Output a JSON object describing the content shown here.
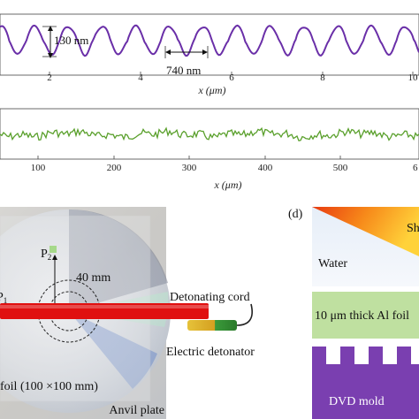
{
  "top_profile": {
    "depth_label": "130 nm",
    "period_label": "740 nm",
    "x_label": "x (μm)",
    "ticks": [
      "2",
      "4",
      "6",
      "8",
      "10"
    ],
    "line_color": "#6a2fa8",
    "period_um": 0.74,
    "depth_nm": 130
  },
  "mid_profile": {
    "x_label": "x (μm)",
    "ticks": [
      "100",
      "200",
      "300",
      "400",
      "500"
    ],
    "partial_tick": "6",
    "line_color": "#5aa02c"
  },
  "panel_c": {
    "p2_label": "P",
    "p2_sub": "2",
    "p1_label": "P",
    "p1_sub": "1",
    "distance_label": "40 mm",
    "cord_label": "Detonating cord",
    "detonator_label": "Electric detonator",
    "foil_label": "foil (100 ×100 mm)",
    "anvil_label": "Anvil plate",
    "cord_color": "#e01010",
    "marker_color": "#a6d98a"
  },
  "panel_d": {
    "panel_label": "(d)",
    "shock_label": "Sh",
    "water_label": "Water",
    "foil_label": "10 μm thick Al foil",
    "mold_label": "DVD mold",
    "foil_color": "#bfe0a0",
    "mold_color": "#7a3fb0"
  }
}
